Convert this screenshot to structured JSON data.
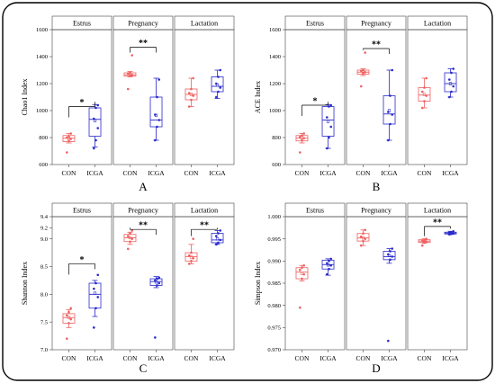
{
  "colors": {
    "con": "#f06060",
    "icga": "#2a2acc",
    "axis": "#444444",
    "frame": "#000000"
  },
  "chart_data": [
    {
      "type": "box",
      "panel_label": "A",
      "ylabel": "Chao1 Index",
      "ylim": [
        600,
        1600
      ],
      "yticks": [
        "600",
        "800",
        "1000",
        "1200",
        "1400",
        "1600"
      ],
      "ytick_values": [
        600,
        800,
        1000,
        1200,
        1400,
        1600
      ],
      "facets": [
        {
          "name": "Estrus",
          "categories": [
            "CON",
            "ICGA"
          ],
          "significance": "*",
          "sig_y": 1030,
          "boxes": [
            {
              "group": "con",
              "q1": 770,
              "median": 795,
              "q3": 815,
              "whisker_low": 760,
              "whisker_high": 830,
              "mean": 795,
              "points": [
                690,
                775,
                790,
                800,
                810,
                830
              ]
            },
            {
              "group": "icga",
              "q1": 810,
              "median": 935,
              "q3": 1020,
              "whisker_low": 730,
              "whisker_high": 1045,
              "mean": 925,
              "points": [
                720,
                780,
                870,
                940,
                1020,
                1040
              ]
            }
          ]
        },
        {
          "name": "Pregnancy",
          "categories": [
            "CON",
            "ICGA"
          ],
          "significance": "**",
          "sig_y": 1470,
          "boxes": [
            {
              "group": "con",
              "q1": 1255,
              "median": 1265,
              "q3": 1280,
              "whisker_low": 1250,
              "whisker_high": 1290,
              "mean": 1270,
              "points": [
                1160,
                1260,
                1265,
                1275,
                1280,
                1410
              ]
            },
            {
              "group": "icga",
              "q1": 880,
              "median": 930,
              "q3": 1100,
              "whisker_low": 780,
              "whisker_high": 1240,
              "mean": 965,
              "points": [
                780,
                880,
                930,
                970,
                1100,
                1230
              ]
            }
          ]
        },
        {
          "name": "Lactation",
          "categories": [
            "CON",
            "ICGA"
          ],
          "boxes": [
            {
              "group": "con",
              "q1": 1080,
              "median": 1120,
              "q3": 1160,
              "whisker_low": 1030,
              "whisker_high": 1240,
              "mean": 1120,
              "points": [
                1030,
                1080,
                1110,
                1130,
                1160,
                1240
              ]
            },
            {
              "group": "icga",
              "q1": 1140,
              "median": 1180,
              "q3": 1250,
              "whisker_low": 1090,
              "whisker_high": 1300,
              "mean": 1190,
              "points": [
                1100,
                1140,
                1170,
                1200,
                1250,
                1300
              ]
            }
          ]
        }
      ]
    },
    {
      "type": "box",
      "panel_label": "B",
      "ylabel": "ACE Index",
      "ylim": [
        600,
        1600
      ],
      "yticks": [
        "600",
        "800",
        "1000",
        "1200",
        "1400",
        "1600"
      ],
      "ytick_values": [
        600,
        800,
        1000,
        1200,
        1400,
        1600
      ],
      "facets": [
        {
          "name": "Estrus",
          "categories": [
            "CON",
            "ICGA"
          ],
          "significance": "*",
          "sig_y": 1040,
          "boxes": [
            {
              "group": "con",
              "q1": 775,
              "median": 795,
              "q3": 815,
              "whisker_low": 760,
              "whisker_high": 830,
              "mean": 800,
              "points": [
                690,
                780,
                795,
                805,
                815,
                830
              ]
            },
            {
              "group": "icga",
              "q1": 810,
              "median": 930,
              "q3": 1030,
              "whisker_low": 720,
              "whisker_high": 1045,
              "mean": 920,
              "points": [
                720,
                800,
                880,
                950,
                1030,
                1040
              ]
            }
          ]
        },
        {
          "name": "Pregnancy",
          "categories": [
            "CON",
            "ICGA"
          ],
          "significance": "**",
          "sig_y": 1460,
          "boxes": [
            {
              "group": "con",
              "q1": 1270,
              "median": 1285,
              "q3": 1300,
              "whisker_low": 1260,
              "whisker_high": 1310,
              "mean": 1290,
              "points": [
                1180,
                1275,
                1285,
                1295,
                1300,
                1430
              ]
            },
            {
              "group": "icga",
              "q1": 900,
              "median": 975,
              "q3": 1110,
              "whisker_low": 780,
              "whisker_high": 1300,
              "mean": 1000,
              "points": [
                780,
                900,
                970,
                990,
                1110,
                1300
              ]
            }
          ]
        },
        {
          "name": "Lactation",
          "categories": [
            "CON",
            "ICGA"
          ],
          "boxes": [
            {
              "group": "con",
              "q1": 1070,
              "median": 1115,
              "q3": 1170,
              "whisker_low": 1020,
              "whisker_high": 1240,
              "mean": 1120,
              "points": [
                1020,
                1070,
                1110,
                1140,
                1170,
                1240
              ]
            },
            {
              "group": "icga",
              "q1": 1140,
              "median": 1200,
              "q3": 1280,
              "whisker_low": 1100,
              "whisker_high": 1310,
              "mean": 1200,
              "points": [
                1100,
                1140,
                1180,
                1230,
                1280,
                1310
              ]
            }
          ]
        }
      ]
    },
    {
      "type": "box",
      "panel_label": "C",
      "ylabel": "Shannon Index",
      "ylim": [
        7.0,
        9.4
      ],
      "yticks": [
        "7.0",
        "7.5",
        "8.0",
        "8.5",
        "9.0"
      ],
      "ytick_values": [
        7.0,
        7.5,
        8.0,
        8.5,
        9.0
      ],
      "ytop_tick_labels": [
        "9.2",
        "9.4"
      ],
      "facets": [
        {
          "name": "Estrus",
          "categories": [
            "CON",
            "ICGA"
          ],
          "significance": "*",
          "sig_y": 8.55,
          "boxes": [
            {
              "group": "con",
              "q1": 7.48,
              "median": 7.58,
              "q3": 7.65,
              "whisker_low": 7.4,
              "whisker_high": 7.72,
              "mean": 7.58,
              "points": [
                7.2,
                7.48,
                7.55,
                7.62,
                7.68,
                7.75
              ]
            },
            {
              "group": "icga",
              "q1": 7.75,
              "median": 8.0,
              "q3": 8.2,
              "whisker_low": 7.6,
              "whisker_high": 8.25,
              "mean": 8.02,
              "points": [
                7.4,
                7.75,
                7.95,
                8.1,
                8.2,
                8.35
              ]
            }
          ]
        },
        {
          "name": "Pregnancy",
          "categories": [
            "CON",
            "ICGA"
          ],
          "significance": "**",
          "sig_y": 9.17,
          "boxes": [
            {
              "group": "con",
              "q1": 8.95,
              "median": 9.02,
              "q3": 9.08,
              "whisker_low": 8.9,
              "whisker_high": 9.12,
              "mean": 9.02,
              "points": [
                8.82,
                8.95,
                9.0,
                9.05,
                9.1,
                9.15
              ]
            },
            {
              "group": "icga",
              "q1": 8.16,
              "median": 8.23,
              "q3": 8.28,
              "whisker_low": 8.12,
              "whisker_high": 8.32,
              "mean": 8.22,
              "points": [
                7.22,
                8.16,
                8.2,
                8.25,
                8.28,
                8.3
              ]
            }
          ]
        },
        {
          "name": "Lactation",
          "categories": [
            "CON",
            "ICGA"
          ],
          "significance": "**",
          "sig_y": 9.17,
          "boxes": [
            {
              "group": "con",
              "q1": 8.6,
              "median": 8.68,
              "q3": 8.75,
              "whisker_low": 8.55,
              "whisker_high": 8.9,
              "mean": 8.67,
              "points": [
                8.55,
                8.6,
                8.65,
                8.7,
                8.75,
                9.0
              ]
            },
            {
              "group": "icga",
              "q1": 8.93,
              "median": 8.98,
              "q3": 9.1,
              "whisker_low": 8.9,
              "whisker_high": 9.15,
              "mean": 9.0,
              "points": [
                8.9,
                8.93,
                8.98,
                9.05,
                9.1,
                9.15
              ]
            }
          ]
        }
      ]
    },
    {
      "type": "box",
      "panel_label": "D",
      "ylabel": "Simpson Index",
      "ylim": [
        0.97,
        1.0
      ],
      "yticks": [
        "0.970",
        "0.975",
        "0.980",
        "0.985",
        "0.990",
        "0.995",
        "1.000"
      ],
      "ytick_values": [
        0.97,
        0.975,
        0.98,
        0.985,
        0.99,
        0.995,
        1.0
      ],
      "facets": [
        {
          "name": "Estrus",
          "categories": [
            "CON",
            "ICGA"
          ],
          "boxes": [
            {
              "group": "con",
              "q1": 0.986,
              "median": 0.9875,
              "q3": 0.9885,
              "whisker_low": 0.9855,
              "whisker_high": 0.989,
              "mean": 0.9872,
              "points": [
                0.9795,
                0.986,
                0.987,
                0.988,
                0.9885,
                0.989
              ]
            },
            {
              "group": "icga",
              "q1": 0.9882,
              "median": 0.9892,
              "q3": 0.9902,
              "whisker_low": 0.9868,
              "whisker_high": 0.9905,
              "mean": 0.9891,
              "points": [
                0.987,
                0.9882,
                0.989,
                0.9895,
                0.99,
                0.9905
              ]
            }
          ]
        },
        {
          "name": "Pregnancy",
          "categories": [
            "CON",
            "ICGA"
          ],
          "boxes": [
            {
              "group": "con",
              "q1": 0.9945,
              "median": 0.9952,
              "q3": 0.9962,
              "whisker_low": 0.9935,
              "whisker_high": 0.997,
              "mean": 0.9952,
              "points": [
                0.9935,
                0.9945,
                0.995,
                0.9955,
                0.9962,
                0.997
              ]
            },
            {
              "group": "icga",
              "q1": 0.9903,
              "median": 0.991,
              "q3": 0.9922,
              "whisker_low": 0.9895,
              "whisker_high": 0.9928,
              "mean": 0.9912,
              "points": [
                0.972,
                0.9903,
                0.991,
                0.9915,
                0.9922,
                0.9928
              ]
            }
          ]
        },
        {
          "name": "Lactation",
          "categories": [
            "CON",
            "ICGA"
          ],
          "significance": "**",
          "sig_y": 0.9978,
          "boxes": [
            {
              "group": "con",
              "q1": 0.9942,
              "median": 0.9945,
              "q3": 0.9948,
              "whisker_low": 0.994,
              "whisker_high": 0.995,
              "mean": 0.9945,
              "points": [
                0.9935,
                0.9942,
                0.9944,
                0.9946,
                0.9948,
                0.995
              ]
            },
            {
              "group": "icga",
              "q1": 0.9961,
              "median": 0.9963,
              "q3": 0.9965,
              "whisker_low": 0.996,
              "whisker_high": 0.9967,
              "mean": 0.9963,
              "points": [
                0.996,
                0.9961,
                0.9962,
                0.9964,
                0.9965,
                0.9967
              ]
            }
          ]
        }
      ]
    }
  ]
}
